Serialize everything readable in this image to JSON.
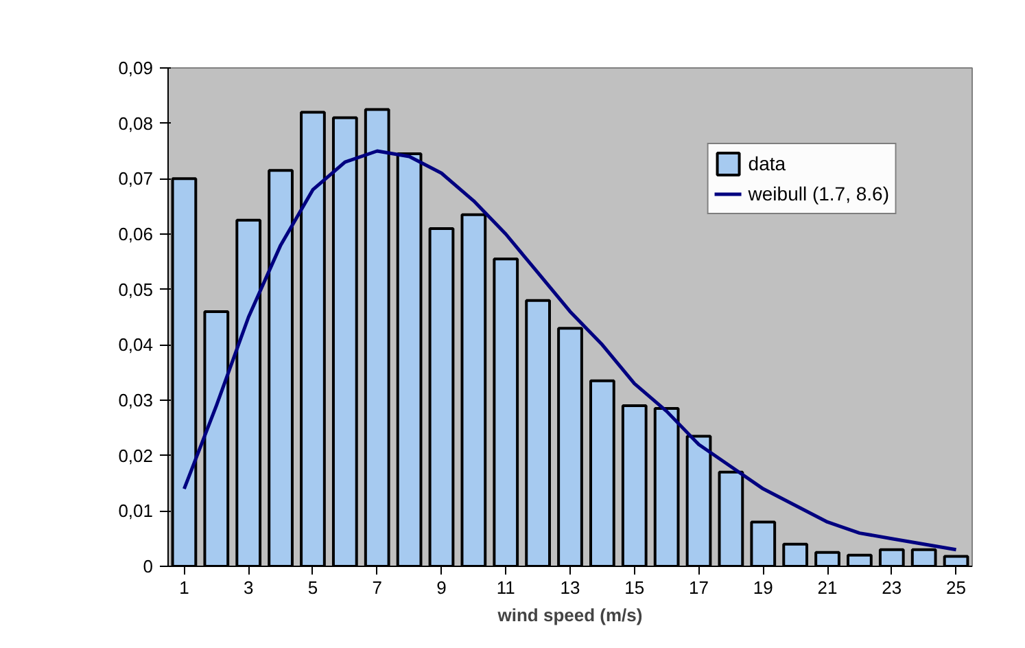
{
  "chart_data": {
    "type": "bar",
    "xlabel": "wind speed (m/s)",
    "x": [
      1,
      2,
      3,
      4,
      5,
      6,
      7,
      8,
      9,
      10,
      11,
      12,
      13,
      14,
      15,
      16,
      17,
      18,
      19,
      20,
      21,
      22,
      23,
      24,
      25
    ],
    "xlim": [
      0.5,
      25.5
    ],
    "xticks": [
      1,
      3,
      5,
      7,
      9,
      11,
      13,
      15,
      17,
      19,
      21,
      23,
      25
    ],
    "series": [
      {
        "name": "data",
        "color": "#a6caf0",
        "values": [
          0.07,
          0.046,
          0.0625,
          0.0715,
          0.082,
          0.081,
          0.0825,
          0.0745,
          0.061,
          0.0635,
          0.0555,
          0.048,
          0.043,
          0.0335,
          0.029,
          0.0285,
          0.0235,
          0.017,
          0.008,
          0.004,
          0.0025,
          0.002,
          0.003,
          0.003,
          0.0018
        ]
      },
      {
        "name": "weibull (1.7, 8.6)",
        "type": "line",
        "color": "#000080",
        "values": [
          0.014,
          0.029,
          0.045,
          0.058,
          0.068,
          0.073,
          0.075,
          0.074,
          0.071,
          0.066,
          0.06,
          0.053,
          0.046,
          0.04,
          0.033,
          0.028,
          0.022,
          0.018,
          0.014,
          0.011,
          0.008,
          0.006,
          0.005,
          0.004,
          0.003
        ]
      }
    ],
    "ylim": [
      0,
      0.09
    ],
    "yticks": [
      {
        "value": 0,
        "label": "0"
      },
      {
        "value": 0.01,
        "label": "0,01"
      },
      {
        "value": 0.02,
        "label": "0,02"
      },
      {
        "value": 0.03,
        "label": "0,03"
      },
      {
        "value": 0.04,
        "label": "0,04"
      },
      {
        "value": 0.05,
        "label": "0,05"
      },
      {
        "value": 0.06,
        "label": "0,06"
      },
      {
        "value": 0.07,
        "label": "0,07"
      },
      {
        "value": 0.08,
        "label": "0,08"
      },
      {
        "value": 0.09,
        "label": "0,09"
      }
    ],
    "legend": "top right"
  }
}
